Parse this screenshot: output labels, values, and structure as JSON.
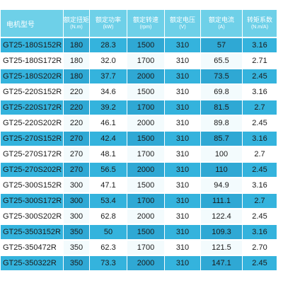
{
  "table": {
    "headers": [
      {
        "name": "电机型号",
        "unit": ""
      },
      {
        "name": "额定扭矩",
        "unit": "(N.m)"
      },
      {
        "name": "额定功率",
        "unit": "(kW)"
      },
      {
        "name": "额定转速",
        "unit": "(rpm)"
      },
      {
        "name": "额定电压",
        "unit": "(V)"
      },
      {
        "name": "额定电流",
        "unit": "(A)"
      },
      {
        "name": "转矩系数",
        "unit": "(N.m/A)"
      }
    ],
    "rows": [
      [
        "GT25-180S152R",
        "180",
        "28.3",
        "1500",
        "310",
        "57",
        "3.16"
      ],
      [
        "GT25-180S172R",
        "180",
        "32.0",
        "1700",
        "310",
        "65.5",
        "2.71"
      ],
      [
        "GT25-180S202R",
        "180",
        "37.7",
        "2000",
        "310",
        "73.5",
        "2.45"
      ],
      [
        "GT25-220S152R",
        "220",
        "34.6",
        "1500",
        "310",
        "69.8",
        "3.16"
      ],
      [
        "GT25-220S172R",
        "220",
        "39.2",
        "1700",
        "310",
        "81.5",
        "2.7"
      ],
      [
        "GT25-220S202R",
        "220",
        "46.1",
        "2000",
        "310",
        "89.8",
        "2.45"
      ],
      [
        "GT25-270S152R",
        "270",
        "42.4",
        "1500",
        "310",
        "85.7",
        "3.16"
      ],
      [
        "GT25-270S172R",
        "270",
        "48.1",
        "1700",
        "310",
        "100",
        "2.7"
      ],
      [
        "GT25-270S202R",
        "270",
        "56.5",
        "2000",
        "310",
        "110",
        "2.45"
      ],
      [
        "GT25-300S152R",
        "300",
        "47.1",
        "1500",
        "310",
        "94.9",
        "3.16"
      ],
      [
        "GT25-300S172R",
        "300",
        "53.4",
        "1700",
        "310",
        "111.1",
        "2.7"
      ],
      [
        "GT25-300S202R",
        "300",
        "62.8",
        "2000",
        "310",
        "122.4",
        "2.45"
      ],
      [
        "GT25-3503152R",
        "350",
        "50",
        "1500",
        "310",
        "109.3",
        "3.16"
      ],
      [
        "GT25-350472R",
        "350",
        "62.3",
        "1700",
        "310",
        "121.5",
        "2.70"
      ],
      [
        "GT25-350322R",
        "350",
        "73.3",
        "2000",
        "310",
        "147.1",
        "2.45"
      ]
    ]
  }
}
